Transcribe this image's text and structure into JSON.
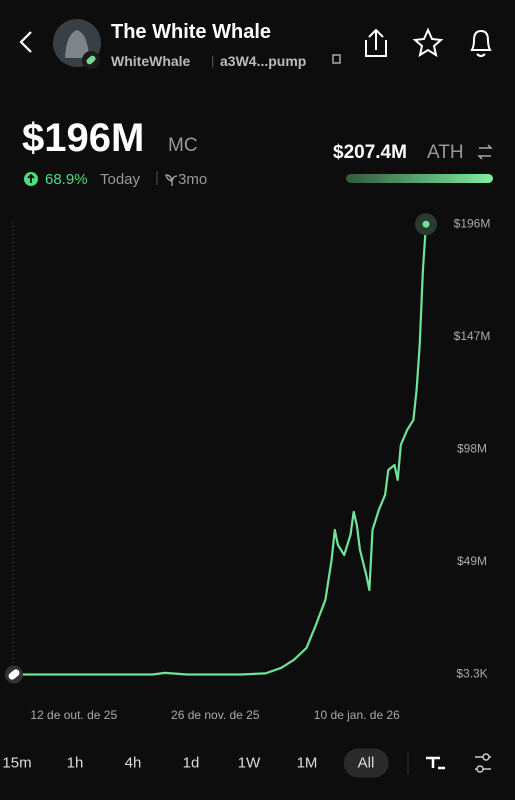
{
  "header": {
    "name": "The White Whale",
    "ticker": "WhiteWhale",
    "address": "a3W4...pump"
  },
  "stats": {
    "market_cap": "$196M",
    "market_cap_unit": "MC",
    "change": "68.9%",
    "change_period": "Today",
    "age": "3mo",
    "ath": "$207.4M",
    "ath_label": "ATH"
  },
  "chart_data": {
    "type": "line",
    "x": [
      "2025-09-23",
      "2025-11-02",
      "2025-11-06",
      "2025-11-10",
      "2025-11-17",
      "2025-11-25",
      "2025-12-04",
      "2025-12-12",
      "2025-12-17",
      "2025-12-21",
      "2025-12-25",
      "2025-12-28",
      "2025-12-31",
      "2026-01-02",
      "2026-01-03",
      "2026-01-04",
      "2026-01-06",
      "2026-01-08",
      "2026-01-09",
      "2026-01-10",
      "2026-01-11",
      "2026-01-13",
      "2026-01-14",
      "2026-01-15",
      "2026-01-17",
      "2026-01-19",
      "2026-01-20",
      "2026-01-22",
      "2026-01-23",
      "2026-01-24",
      "2026-01-26",
      "2026-01-28",
      "2026-01-29",
      "2026-01-30",
      "2026-01-31",
      "2026-02-01"
    ],
    "series": [
      {
        "color": "#6fe397",
        "values": [
          3300,
          3300,
          3300,
          700000,
          3300,
          3300,
          3300,
          500000,
          2900000,
          6400000,
          11600000,
          21600000,
          32500000,
          49900000,
          62900000,
          56400000,
          52000000,
          60800000,
          70800000,
          65100000,
          54200000,
          43400000,
          36800000,
          62900000,
          71600000,
          78200000,
          89000000,
          91200000,
          84700000,
          99900000,
          106400000,
          110800000,
          123900000,
          143400000,
          176000000,
          196000000
        ]
      }
    ],
    "xlim": [
      "2025-09-23",
      "2026-02-01"
    ],
    "xticks": [
      {
        "value": "2025-10-12",
        "label": "12 de out. de 25"
      },
      {
        "value": "2025-11-26",
        "label": "26 de nov. de 25"
      },
      {
        "value": "2026-01-10",
        "label": "10 de jan. de 26"
      }
    ],
    "ylim": [
      -5000000,
      200000000
    ],
    "yticks": [
      {
        "value": 3300,
        "label": "$3.3K"
      },
      {
        "value": 49000000,
        "label": "$49M"
      },
      {
        "value": 98000000,
        "label": "$98M"
      },
      {
        "value": 147000000,
        "label": "$147M"
      },
      {
        "value": 196000000,
        "label": "$196M"
      }
    ]
  },
  "timeframes": [
    "15m",
    "1h",
    "4h",
    "1d",
    "1W",
    "1M",
    "All"
  ],
  "selected_timeframe": 6
}
